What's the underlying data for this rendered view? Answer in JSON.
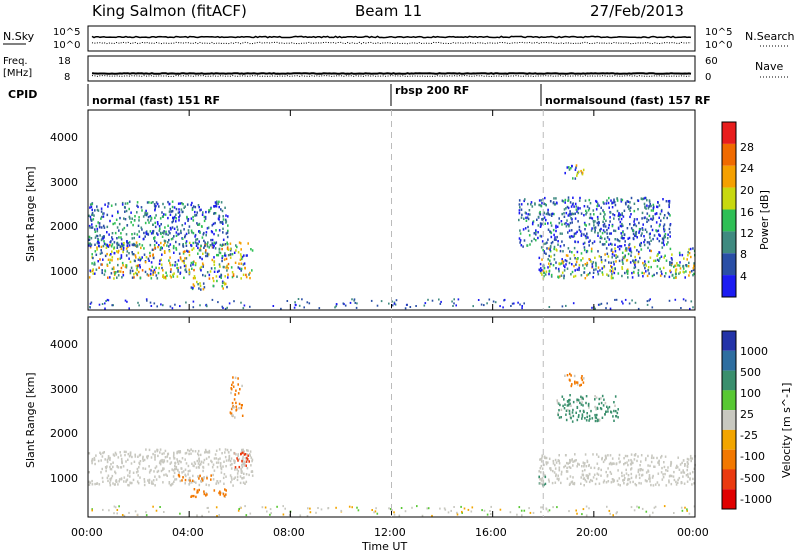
{
  "header": {
    "station": "King Salmon (fitACF)",
    "beam": "Beam 11",
    "date": "27/Feb/2013"
  },
  "noise_panel": {
    "left_label": "N.Sky",
    "right_label": "N.Search",
    "left_ticks": [
      "10^5",
      "10^0"
    ],
    "right_ticks": [
      "10^5",
      "10^0"
    ]
  },
  "freq_panel": {
    "left_label_line1": "Freq.",
    "left_label_line2": "[MHz]",
    "right_label": "Nave",
    "left_ticks": [
      "18",
      "8"
    ],
    "right_ticks": [
      "60",
      "0"
    ]
  },
  "cpid": {
    "label": "CPID",
    "modes": [
      {
        "start_hour": 0.0,
        "text": "normal (fast) 151 RF"
      },
      {
        "start_hour": 12.0,
        "text": "rbsp 200 RF"
      },
      {
        "start_hour": 18.0,
        "text": "normalsound (fast) 157 RF"
      }
    ]
  },
  "x_axis": {
    "label": "Time UT",
    "ticks": [
      "00:00",
      "04:00",
      "08:00",
      "12:00",
      "16:00",
      "20:00",
      "00:00"
    ],
    "tick_hours": [
      0,
      4,
      8,
      12,
      16,
      20,
      24
    ],
    "range_hours": [
      0,
      24
    ]
  },
  "power_panel": {
    "ylabel": "Slant Range [km]",
    "yticks": [
      "1000",
      "2000",
      "3000",
      "4000"
    ],
    "colorbar_label": "Power [dB]",
    "colorbar_ticks": [
      "4",
      "8",
      "12",
      "16",
      "20",
      "24",
      "28"
    ],
    "colors": [
      "#1c1cf2",
      "#2a4fa6",
      "#3f8a80",
      "#2fbf55",
      "#c8d80f",
      "#f5a000",
      "#f06a00",
      "#e81d1d"
    ]
  },
  "velocity_panel": {
    "ylabel": "Slant Range [km]",
    "yticks": [
      "1000",
      "2000",
      "3000",
      "4000"
    ],
    "colorbar_label": "Velocity [m s^-1]",
    "colorbar_ticks": [
      "1000",
      "500",
      "100",
      "25",
      "-25",
      "-100",
      "-500",
      "-1000"
    ],
    "colors": [
      "#2333a8",
      "#2e6ea0",
      "#3a8f6d",
      "#58c833",
      "#c8c8c0",
      "#f2a500",
      "#f27800",
      "#ea3a10",
      "#e00000"
    ]
  },
  "chart_data": [
    {
      "type": "heatmap",
      "title": "Power",
      "xlabel": "Time UT",
      "ylabel": "Slant Range [km]",
      "xlim_hours": [
        0,
        24
      ],
      "ylim_km": [
        180,
        4600
      ],
      "colorbar": "Power [dB]",
      "echo_regions": [
        {
          "t_start": 0.0,
          "t_end": 6.5,
          "range_km": [
            900,
            1700
          ],
          "peak_power_db": 20
        },
        {
          "t_start": 0.0,
          "t_end": 5.5,
          "range_km": [
            1600,
            2600
          ],
          "peak_power_db": 10
        },
        {
          "t_start": 4.0,
          "t_end": 5.5,
          "range_km": [
            650,
            850
          ],
          "peak_power_db": 18
        },
        {
          "t_start": 17.8,
          "t_end": 24.0,
          "range_km": [
            900,
            1600
          ],
          "peak_power_db": 18
        },
        {
          "t_start": 17.0,
          "t_end": 23.0,
          "range_km": [
            1600,
            2700
          ],
          "peak_power_db": 8
        },
        {
          "t_start": 18.8,
          "t_end": 19.6,
          "range_km": [
            3100,
            3400
          ],
          "peak_power_db": 16
        }
      ]
    },
    {
      "type": "heatmap",
      "title": "Velocity",
      "xlabel": "Time UT",
      "ylabel": "Slant Range [km]",
      "xlim_hours": [
        0,
        24
      ],
      "ylim_km": [
        180,
        4600
      ],
      "colorbar": "Velocity [m s^-1]",
      "echo_regions": [
        {
          "t_start": 0.0,
          "t_end": 6.5,
          "range_km": [
            900,
            1700
          ],
          "velocity_ms": 0
        },
        {
          "t_start": 3.5,
          "t_end": 5.0,
          "range_km": [
            1000,
            1150
          ],
          "velocity_ms": -200
        },
        {
          "t_start": 4.0,
          "t_end": 5.5,
          "range_km": [
            650,
            850
          ],
          "velocity_ms": -150
        },
        {
          "t_start": 5.6,
          "t_end": 6.4,
          "range_km": [
            1300,
            1650
          ],
          "velocity_ms": -500
        },
        {
          "t_start": 5.6,
          "t_end": 6.1,
          "range_km": [
            2400,
            3300
          ],
          "velocity_ms": -300
        },
        {
          "t_start": 17.8,
          "t_end": 24.0,
          "range_km": [
            900,
            1600
          ],
          "velocity_ms": 0
        },
        {
          "t_start": 17.8,
          "t_end": 18.2,
          "range_km": [
            900,
            1100
          ],
          "velocity_ms": 120
        },
        {
          "t_start": 18.5,
          "t_end": 21.0,
          "range_km": [
            2300,
            2900
          ],
          "velocity_ms": 300
        },
        {
          "t_start": 18.8,
          "t_end": 19.6,
          "range_km": [
            3100,
            3400
          ],
          "velocity_ms": -200
        }
      ]
    }
  ]
}
